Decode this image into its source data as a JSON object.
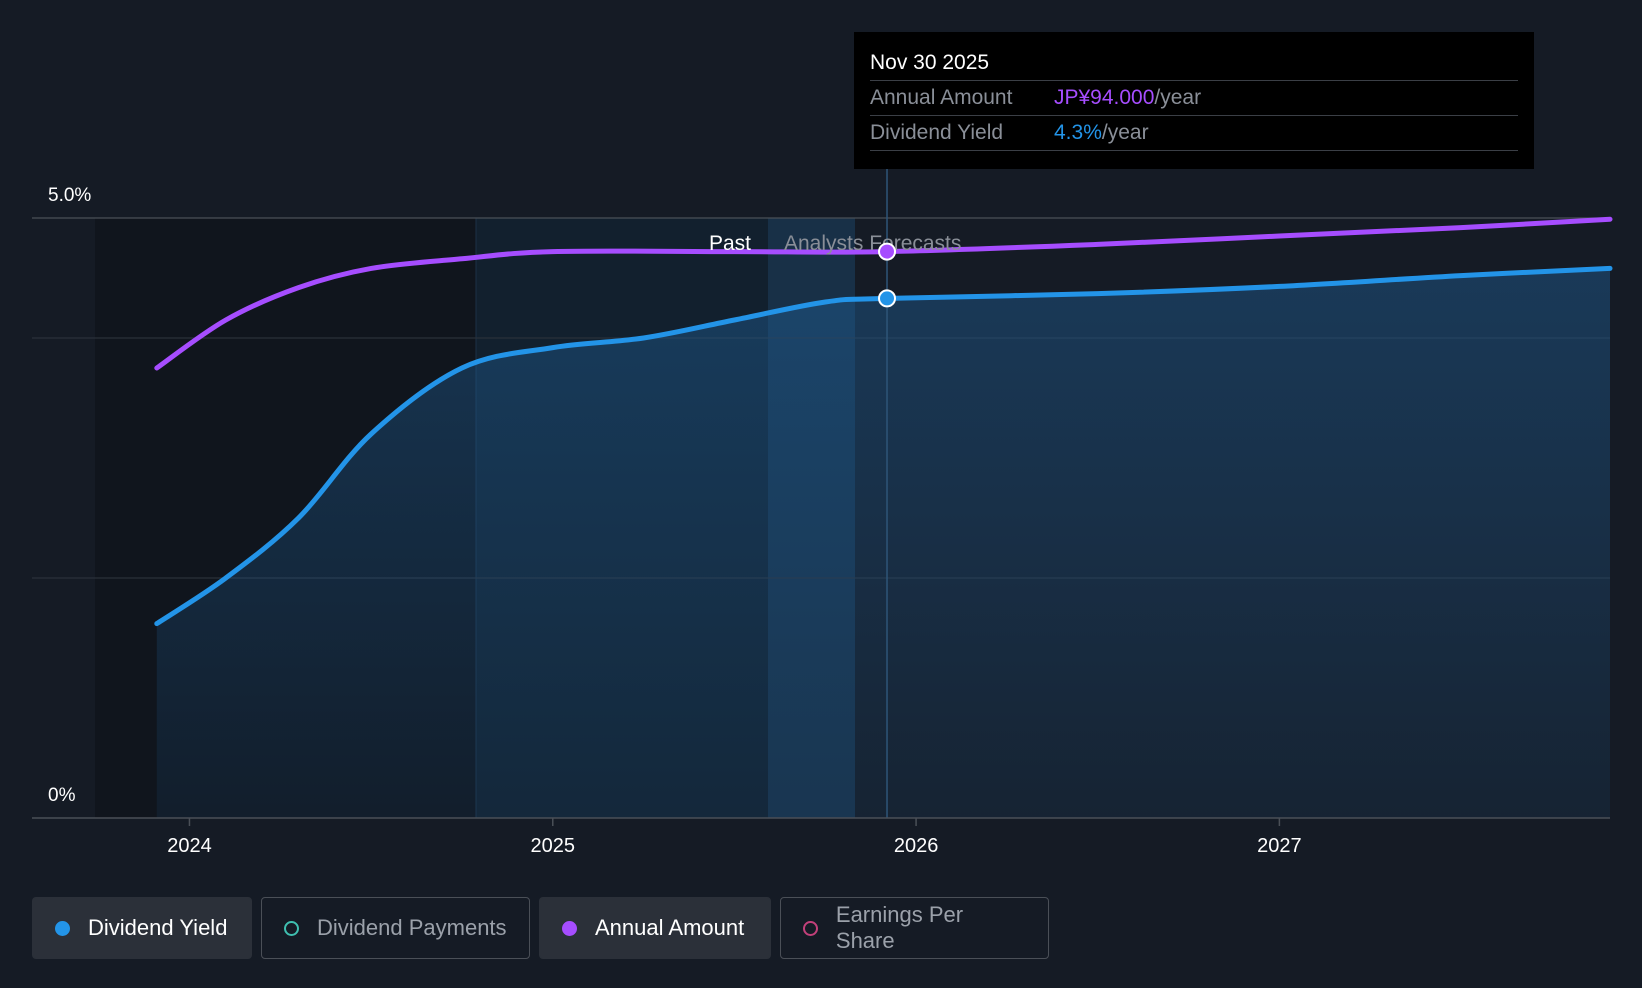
{
  "chart_data": {
    "type": "area",
    "y_tick_labels": [
      "5.0%",
      "0%"
    ],
    "x_tick_labels": [
      "2024",
      "2025",
      "2026",
      "2027"
    ],
    "x_ticks": [
      2024.0,
      2025.0,
      2026.0,
      2027.0
    ],
    "xlim": [
      2023.74,
      2027.91
    ],
    "ylim": [
      0,
      5.0
    ],
    "region_labels": {
      "past": "Past",
      "forecast": "Analysts Forecasts"
    },
    "past_end": 2025.92,
    "series": [
      {
        "name": "Dividend Yield",
        "color": "#2394e8",
        "filled": true,
        "points": [
          [
            2023.91,
            1.62
          ],
          [
            2024.1,
            2.0
          ],
          [
            2024.3,
            2.5
          ],
          [
            2024.5,
            3.2
          ],
          [
            2024.75,
            3.75
          ],
          [
            2025.0,
            3.92
          ],
          [
            2025.25,
            4.0
          ],
          [
            2025.5,
            4.15
          ],
          [
            2025.75,
            4.3
          ],
          [
            2025.92,
            4.33
          ],
          [
            2026.5,
            4.37
          ],
          [
            2027.0,
            4.43
          ],
          [
            2027.5,
            4.52
          ],
          [
            2027.91,
            4.58
          ]
        ]
      },
      {
        "name": "Annual Amount",
        "color": "#a64dff",
        "filled": false,
        "points": [
          [
            2023.91,
            3.75
          ],
          [
            2024.1,
            4.15
          ],
          [
            2024.3,
            4.42
          ],
          [
            2024.5,
            4.58
          ],
          [
            2024.75,
            4.66
          ],
          [
            2025.0,
            4.72
          ],
          [
            2025.5,
            4.72
          ],
          [
            2025.92,
            4.72
          ],
          [
            2026.5,
            4.78
          ],
          [
            2027.0,
            4.85
          ],
          [
            2027.5,
            4.92
          ],
          [
            2027.91,
            4.99
          ]
        ]
      }
    ],
    "highlight_x": 2025.92
  },
  "tooltip": {
    "date": "Nov 30 2025",
    "annual_label": "Annual Amount",
    "annual_value": "JP¥94.000",
    "yield_label": "Dividend Yield",
    "yield_value": "4.3%",
    "unit": "/year"
  },
  "legend": [
    {
      "label": "Dividend Yield",
      "color": "#2394e8",
      "active": true
    },
    {
      "label": "Dividend Payments",
      "color": "#3fbfb0",
      "active": false
    },
    {
      "label": "Annual Amount",
      "color": "#a64dff",
      "active": true
    },
    {
      "label": "Earnings Per Share",
      "color": "#c2407a",
      "active": false
    }
  ]
}
